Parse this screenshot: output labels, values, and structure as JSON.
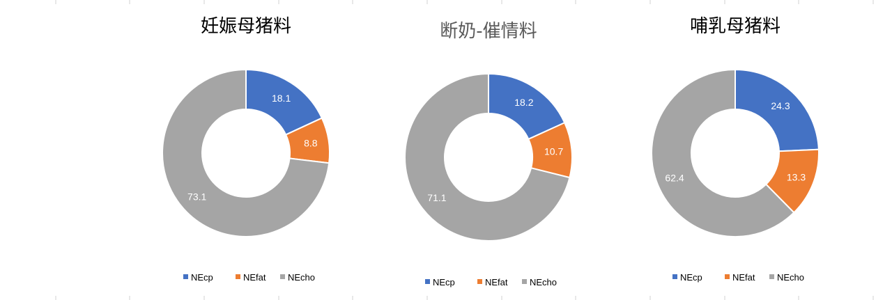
{
  "colors": {
    "NEcp": "#4472C4",
    "NEfat": "#ED7D31",
    "NEcho": "#A5A5A5"
  },
  "legend": [
    "NEcp",
    "NEfat",
    "NEcho"
  ],
  "chart_data": [
    {
      "type": "pie",
      "variant": "donut",
      "title": "妊娠母猪料",
      "categories": [
        "NEcp",
        "NEfat",
        "NEcho"
      ],
      "values": [
        18.1,
        8.8,
        73.1
      ],
      "labels": [
        "18.1",
        "8.8",
        "73.1"
      ],
      "legend_position": "bottom"
    },
    {
      "type": "pie",
      "variant": "donut",
      "title": "断奶-催情料",
      "categories": [
        "NEcp",
        "NEfat",
        "NEcho"
      ],
      "values": [
        18.2,
        10.7,
        71.1
      ],
      "labels": [
        "18.2",
        "10.7",
        "71.1"
      ],
      "legend_position": "bottom"
    },
    {
      "type": "pie",
      "variant": "donut",
      "title": "哺乳母猪料",
      "categories": [
        "NEcp",
        "NEfat",
        "NEcho"
      ],
      "values": [
        24.3,
        13.3,
        62.4
      ],
      "labels": [
        "24.3",
        "13.3",
        "62.4"
      ],
      "legend_position": "bottom"
    }
  ]
}
